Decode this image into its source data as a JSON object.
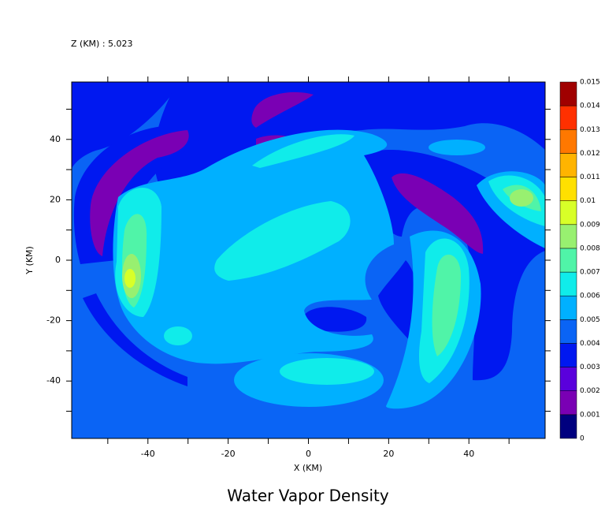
{
  "chart_data": {
    "type": "contour",
    "title": "Water Vapor Density",
    "subtitle": "Z (KM) : 5.023",
    "x_label": "X (KM)",
    "y_label": "Y (KM)",
    "xlim": [
      -59,
      59
    ],
    "xticks": [
      -40,
      -20,
      0,
      20,
      40
    ],
    "ylim": [
      -59,
      59
    ],
    "yticks": [
      -40,
      -20,
      0,
      20,
      40
    ],
    "levels": [
      0,
      0.001,
      0.002,
      0.003,
      0.004,
      0.005,
      0.006,
      0.007,
      0.008,
      0.009,
      0.01,
      0.011,
      0.012,
      0.013,
      0.014,
      0.015
    ],
    "colors": [
      "#00007f",
      "#7a00b4",
      "#5a00dc",
      "#0018f0",
      "#0a64f5",
      "#00b0ff",
      "#10ecea",
      "#50f4a8",
      "#98f070",
      "#d8ff28",
      "#ffe000",
      "#ffb400",
      "#ff7800",
      "#ff3000",
      "#a00000"
    ]
  }
}
